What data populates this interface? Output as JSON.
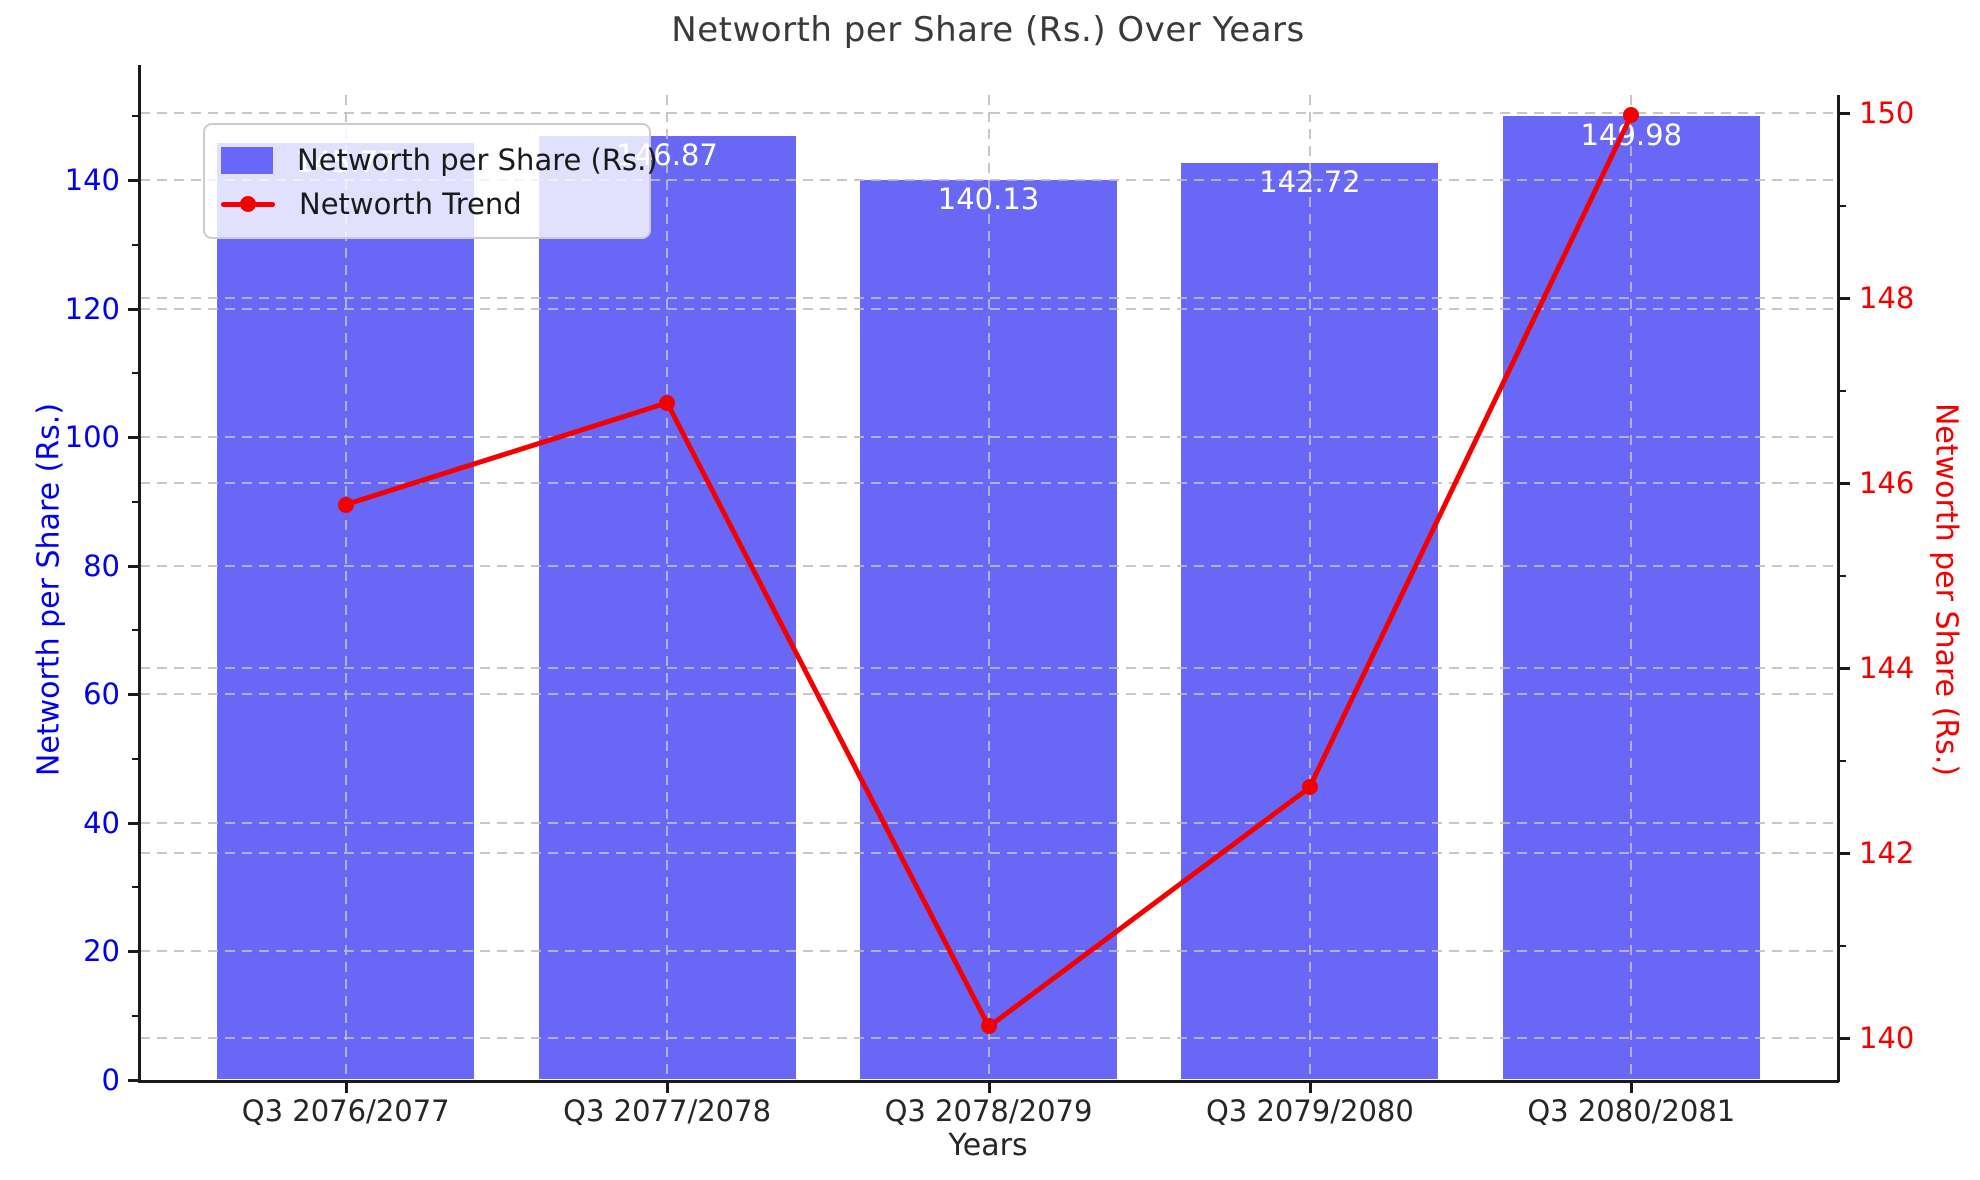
{
  "title": "Networth per Share (Rs.) Over Years",
  "x_axis_label": "Years",
  "y_axis_label_left": "Networth per Share (Rs.)",
  "y_axis_label_right": "Networth per Share (Rs.)",
  "legend": {
    "bar_label": "Networth per Share (Rs.)",
    "line_label": "Networth Trend"
  },
  "colors": {
    "bar": "#6967f6",
    "line": "#f50000",
    "left_ticks": "#0000ee",
    "right_ticks": "#f50000",
    "grid": "#bdbdbd",
    "bar_value_text": "#ffffff",
    "title_text": "#3a3a3a"
  },
  "chart_data": {
    "type": "bar",
    "subtype": "bar-with-line-overlay",
    "title": "Networth per Share (Rs.) Over Years",
    "xlabel": "Years",
    "ylabel_left": "Networth per Share (Rs.)",
    "ylabel_right": "Networth per Share (Rs.)",
    "categories": [
      "Q3 2076/2077",
      "Q3 2077/2078",
      "Q3 2078/2079",
      "Q3 2079/2080",
      "Q3 2080/2081"
    ],
    "series": [
      {
        "name": "Networth per Share (Rs.)",
        "type": "bar",
        "axis": "left",
        "values": [
          145.77,
          146.87,
          140.13,
          142.72,
          149.98
        ],
        "value_labels": [
          "145.77",
          "146.87",
          "140.13",
          "142.72",
          "149.98"
        ]
      },
      {
        "name": "Networth Trend",
        "type": "line",
        "axis": "right",
        "values": [
          145.77,
          146.87,
          140.13,
          142.72,
          149.98
        ]
      }
    ],
    "left_axis": {
      "ticks": [
        0,
        20,
        40,
        60,
        80,
        100,
        120,
        140
      ],
      "minor_ticks": [
        10,
        30,
        50,
        70,
        90,
        110,
        130,
        150
      ],
      "lim": [
        0,
        153.3
      ]
    },
    "right_axis": {
      "ticks": [
        140,
        142,
        144,
        146,
        148,
        150
      ],
      "minor_ticks": [
        141,
        143,
        145,
        147,
        149
      ],
      "lim": [
        139.55,
        150.2
      ]
    },
    "grid": true,
    "grid_style": "dashed",
    "legend_position": "upper left"
  }
}
